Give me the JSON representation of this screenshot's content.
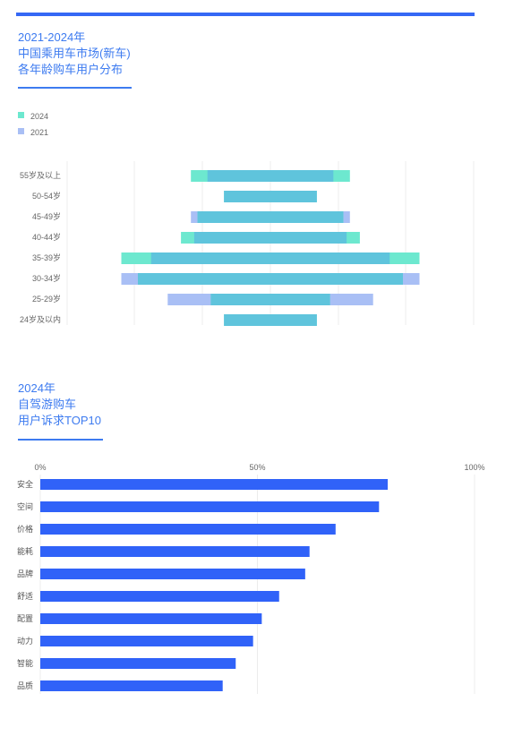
{
  "chart_data": [
    {
      "type": "bar",
      "orientation": "horizontal-diverging",
      "title_lines": [
        "2021-2024年",
        "中国乘用车市场(新车)",
        "各年龄购车用户分布"
      ],
      "legend_position": "top-left",
      "legend": [
        "2024",
        "2021"
      ],
      "categories": [
        "55岁及以上",
        "50-54岁",
        "45-49岁",
        "40-44岁",
        "35-39岁",
        "30-34岁",
        "25-29岁",
        "24岁及以内"
      ],
      "series": [
        {
          "name": "2024",
          "color": "#6de8cf",
          "values": [
            24,
            14,
            22,
            27,
            45,
            40,
            18,
            14
          ]
        },
        {
          "name": "2021",
          "color": "#a9bff5",
          "values": [
            19,
            14,
            24,
            23,
            36,
            45,
            31,
            14
          ]
        }
      ],
      "grid": true
    },
    {
      "type": "bar",
      "orientation": "horizontal",
      "title_lines": [
        "2024年",
        "自驾游购车",
        "用户诉求TOP10"
      ],
      "x_ticks": [
        "0%",
        "50%",
        "100%"
      ],
      "xlim": [
        0,
        100
      ],
      "categories": [
        "安全",
        "空间",
        "价格",
        "能耗",
        "品牌",
        "舒适",
        "配置",
        "动力",
        "智能",
        "品质"
      ],
      "values": [
        80,
        78,
        68,
        62,
        61,
        55,
        51,
        49,
        45,
        42
      ],
      "color": "#3062f8",
      "grid": true
    }
  ]
}
